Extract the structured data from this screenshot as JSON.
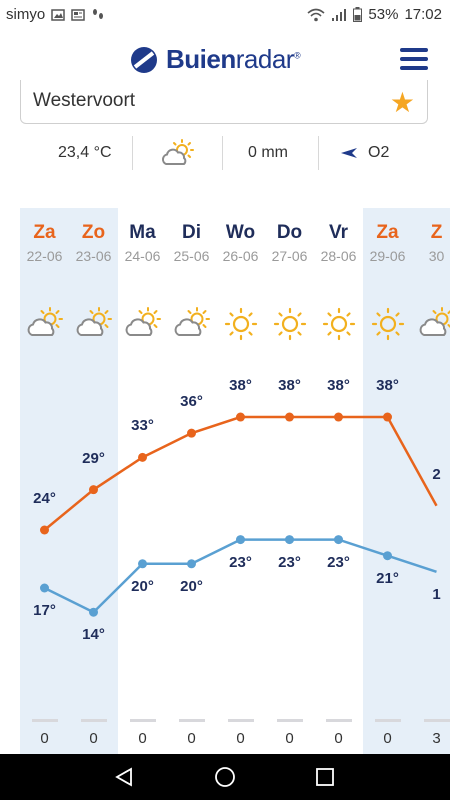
{
  "status_bar": {
    "carrier": "simyo",
    "battery": "53%",
    "time": "17:02"
  },
  "header": {
    "logo_bold": "Buien",
    "logo_light": "radar",
    "logo_mark": "®"
  },
  "location": {
    "name": "Westervoort"
  },
  "current": {
    "temperature": "23,4 °C",
    "precipitation": "0 mm",
    "wind": "O2",
    "weather_icon": "partly-cloudy-icon"
  },
  "forecast": {
    "colors": {
      "max_line": "#e8641c",
      "min_line": "#5aa0d2",
      "weekend_bg": "#e6eff8",
      "weekend_text": "#e8641c",
      "weekday_text": "#1f2d5a"
    },
    "days": [
      {
        "name": "Za",
        "date": "22-06",
        "weekend": true,
        "icon": "partly-cloudy-icon",
        "max": 24,
        "min": 17,
        "max_label": "24°",
        "min_label": "17°",
        "rain": "0"
      },
      {
        "name": "Zo",
        "date": "23-06",
        "weekend": true,
        "icon": "partly-cloudy-icon",
        "max": 29,
        "min": 14,
        "max_label": "29°",
        "min_label": "14°",
        "rain": "0"
      },
      {
        "name": "Ma",
        "date": "24-06",
        "weekend": false,
        "icon": "partly-cloudy-icon",
        "max": 33,
        "min": 20,
        "max_label": "33°",
        "min_label": "20°",
        "rain": "0"
      },
      {
        "name": "Di",
        "date": "25-06",
        "weekend": false,
        "icon": "partly-cloudy-icon",
        "max": 36,
        "min": 20,
        "max_label": "36°",
        "min_label": "20°",
        "rain": "0"
      },
      {
        "name": "Wo",
        "date": "26-06",
        "weekend": false,
        "icon": "sun-icon",
        "max": 38,
        "min": 23,
        "max_label": "38°",
        "min_label": "23°",
        "rain": "0"
      },
      {
        "name": "Do",
        "date": "27-06",
        "weekend": false,
        "icon": "sun-icon",
        "max": 38,
        "min": 23,
        "max_label": "38°",
        "min_label": "23°",
        "rain": "0"
      },
      {
        "name": "Vr",
        "date": "28-06",
        "weekend": false,
        "icon": "sun-icon",
        "max": 38,
        "min": 23,
        "max_label": "38°",
        "min_label": "23°",
        "rain": "0"
      },
      {
        "name": "Za",
        "date": "29-06",
        "weekend": true,
        "icon": "sun-icon",
        "max": 38,
        "min": 21,
        "max_label": "38°",
        "min_label": "21°",
        "rain": "0"
      },
      {
        "name": "Z",
        "date": "30",
        "weekend": true,
        "icon": "partly-cloudy-icon",
        "max": 27,
        "min": 19,
        "max_label": "2",
        "min_label": "1",
        "rain": "3"
      }
    ]
  }
}
